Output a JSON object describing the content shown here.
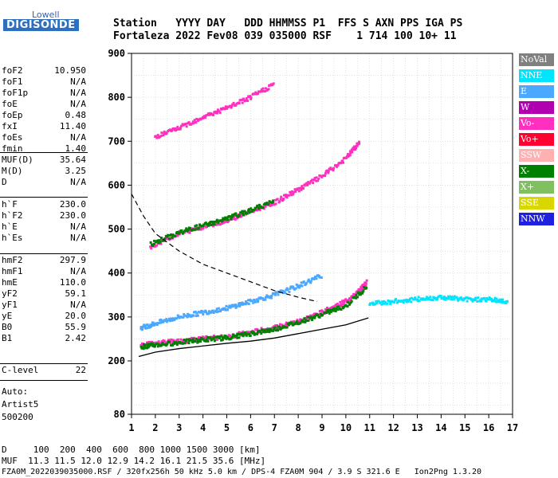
{
  "logo": {
    "brand_top": "Lowell",
    "brand_main": "DIGISONDE"
  },
  "header": {
    "line1": "Station   YYYY DAY   DDD HHMMSS P1  FFS S AXN PPS IGA PS",
    "line2": "Fortaleza 2022 Fev08 039 035000 RSF    1 714 100 10+ 11"
  },
  "params": [
    {
      "label": "foF2",
      "value": "10.950"
    },
    {
      "label": "foF1",
      "value": "N/A"
    },
    {
      "label": "foF1p",
      "value": "N/A"
    },
    {
      "label": "foE",
      "value": "N/A"
    },
    {
      "label": "foEp",
      "value": "0.48"
    },
    {
      "label": "fxI",
      "value": "11.40"
    },
    {
      "label": "foEs",
      "value": "N/A"
    },
    {
      "label": "fmin",
      "value": "1.40"
    },
    {
      "label": "MUF(D)",
      "value": "35.64"
    },
    {
      "label": "M(D)",
      "value": "3.25"
    },
    {
      "label": "D",
      "value": "N/A"
    },
    {
      "label": "h`F",
      "value": "230.0"
    },
    {
      "label": "h`F2",
      "value": "230.0"
    },
    {
      "label": "h`E",
      "value": "N/A"
    },
    {
      "label": "h`Es",
      "value": "N/A"
    },
    {
      "label": "hmF2",
      "value": "297.9"
    },
    {
      "label": "hmF1",
      "value": "N/A"
    },
    {
      "label": "hmE",
      "value": "110.0"
    },
    {
      "label": "yF2",
      "value": "59.1"
    },
    {
      "label": "yF1",
      "value": "N/A"
    },
    {
      "label": "yE",
      "value": "20.0"
    },
    {
      "label": "B0",
      "value": "55.9"
    },
    {
      "label": "B1",
      "value": "2.42"
    },
    {
      "label": "C-level",
      "value": "22"
    }
  ],
  "notes": {
    "auto": "Auto:",
    "artist": "Artist5",
    "version": "500200"
  },
  "legend": [
    {
      "label": "NoVal",
      "color": "#808080"
    },
    {
      "label": "NNE",
      "color": "#00e5ff"
    },
    {
      "label": "E",
      "color": "#4aa8ff"
    },
    {
      "label": "W",
      "color": "#b000b0"
    },
    {
      "label": "Vo-",
      "color": "#ff30c0"
    },
    {
      "label": "Vo+",
      "color": "#ff0030"
    },
    {
      "label": "SSW",
      "color": "#ffb0b0"
    },
    {
      "label": "X-",
      "color": "#008000"
    },
    {
      "label": "X+",
      "color": "#80c060"
    },
    {
      "label": "SSE",
      "color": "#d8d800"
    },
    {
      "label": "NNW",
      "color": "#2020e0"
    }
  ],
  "bottom": {
    "d_line": "D     100  200  400  600  800 1000 1500 3000 [km]",
    "muf_line": "MUF  11.3 11.5 12.0 12.9 14.2 16.1 21.5 35.6 [MHz]",
    "footer": "FZA0M_2022039035000.RSF / 320fx256h 50 kHz 5.0 km / DPS-4 FZA0M 904 / 3.9 S 321.6 E   Ion2Png 1.3.20"
  },
  "chart_data": {
    "type": "scatter",
    "xlim": [
      1,
      17
    ],
    "ylim": [
      80,
      900
    ],
    "x_ticks": [
      1,
      2,
      3,
      4,
      5,
      6,
      7,
      8,
      9,
      10,
      11,
      12,
      13,
      14,
      15,
      16,
      17
    ],
    "y_ticks": [
      80,
      200,
      300,
      400,
      500,
      600,
      700,
      800,
      900
    ],
    "grid": true,
    "legend_position": "right",
    "traces": [
      {
        "color": "#ff30c0",
        "points": [
          [
            1.4,
            235
          ],
          [
            2,
            240
          ],
          [
            3,
            245
          ],
          [
            4,
            250
          ],
          [
            5,
            255
          ],
          [
            6,
            265
          ],
          [
            7,
            275
          ],
          [
            8,
            290
          ],
          [
            9,
            310
          ],
          [
            9.8,
            330
          ],
          [
            10.4,
            350
          ],
          [
            10.9,
            380
          ]
        ]
      },
      {
        "color": "#008000",
        "points": [
          [
            1.4,
            232
          ],
          [
            2,
            236
          ],
          [
            3,
            242
          ],
          [
            4,
            248
          ],
          [
            5,
            253
          ],
          [
            6,
            262
          ],
          [
            7,
            272
          ],
          [
            8,
            288
          ],
          [
            9,
            306
          ],
          [
            10,
            325
          ],
          [
            10.9,
            370
          ]
        ]
      },
      {
        "color": "#4aa8ff",
        "points": [
          [
            1.4,
            275
          ],
          [
            2,
            285
          ],
          [
            3,
            300
          ],
          [
            4,
            310
          ],
          [
            5,
            320
          ],
          [
            6,
            335
          ],
          [
            7,
            350
          ],
          [
            8,
            370
          ],
          [
            9,
            395
          ]
        ]
      },
      {
        "color": "#ff30c0",
        "points": [
          [
            1.8,
            460
          ],
          [
            3,
            490
          ],
          [
            4,
            505
          ],
          [
            5,
            520
          ],
          [
            6,
            540
          ],
          [
            7,
            560
          ],
          [
            8,
            590
          ],
          [
            9,
            620
          ],
          [
            10,
            660
          ],
          [
            10.6,
            700
          ]
        ]
      },
      {
        "color": "#008000",
        "points": [
          [
            1.8,
            465
          ],
          [
            3,
            492
          ],
          [
            4,
            508
          ],
          [
            5,
            523
          ],
          [
            6,
            543
          ],
          [
            7,
            563
          ]
        ]
      },
      {
        "color": "#ff30c0",
        "points": [
          [
            2,
            710
          ],
          [
            3,
            730
          ],
          [
            4,
            755
          ],
          [
            5,
            775
          ],
          [
            6,
            800
          ],
          [
            7,
            830
          ]
        ]
      },
      {
        "color": "#00e5ff",
        "points": [
          [
            11,
            330
          ],
          [
            12,
            335
          ],
          [
            13,
            340
          ],
          [
            14,
            345
          ],
          [
            15,
            340
          ],
          [
            16,
            340
          ],
          [
            16.8,
            335
          ]
        ]
      }
    ],
    "profile_line": [
      [
        1.3,
        210
      ],
      [
        2,
        220
      ],
      [
        3,
        228
      ],
      [
        4,
        234
      ],
      [
        5,
        240
      ],
      [
        6,
        245
      ],
      [
        7,
        252
      ],
      [
        8,
        262
      ],
      [
        9,
        272
      ],
      [
        10,
        282
      ],
      [
        10.95,
        298
      ]
    ],
    "dashed_line": [
      [
        1,
        580
      ],
      [
        1.5,
        530
      ],
      [
        2,
        490
      ],
      [
        3,
        450
      ],
      [
        4,
        420
      ],
      [
        5,
        400
      ],
      [
        6,
        380
      ],
      [
        7,
        360
      ],
      [
        8,
        345
      ],
      [
        8.8,
        335
      ]
    ]
  }
}
